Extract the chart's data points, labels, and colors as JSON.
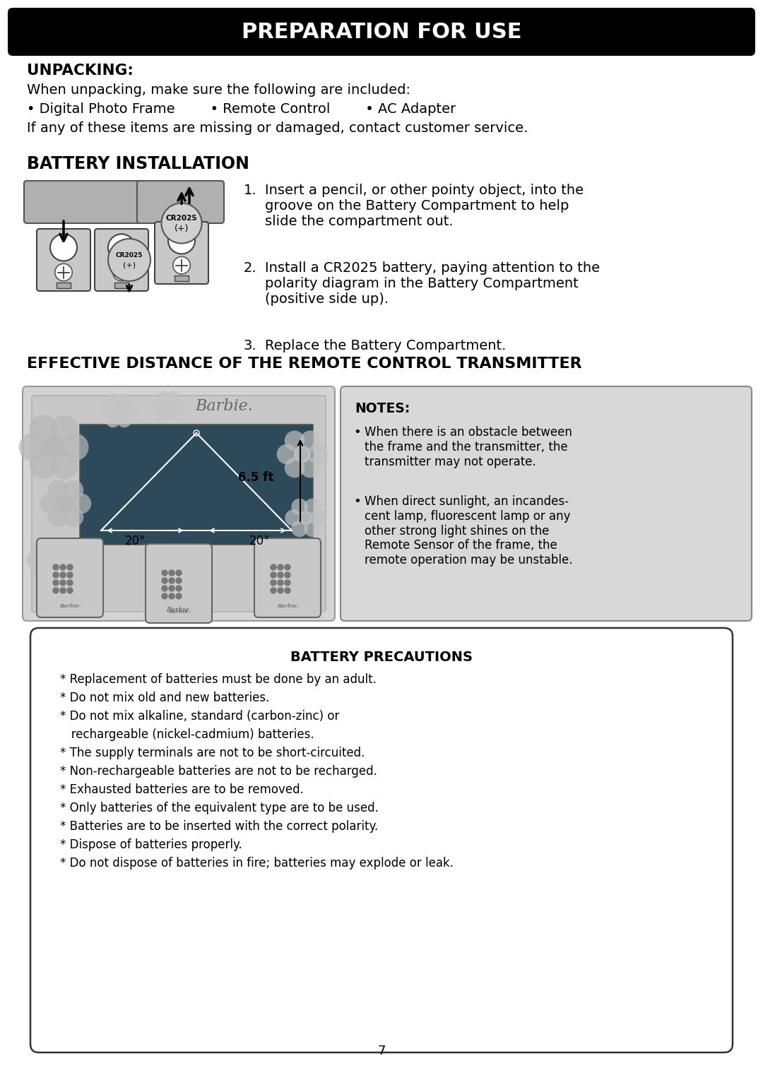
{
  "title": "PREPARATION FOR USE",
  "unpacking_heading": "UNPACKING:",
  "unpacking_line1": "When unpacking, make sure the following are included:",
  "unpacking_items": "• Digital Photo Frame        • Remote Control        • AC Adapter",
  "unpacking_line3": "If any of these items are missing or damaged, contact customer service.",
  "battery_heading": "BATTERY INSTALLATION",
  "step1_num": "1.",
  "step1_text": "Insert a pencil, or other pointy object, into the\ngroove on the Battery Compartment to help\nslide the compartment out.",
  "step2_num": "2.",
  "step2_text": "Install a CR2025 battery, paying attention to the\npolarity diagram in the Battery Compartment\n(positive side up).",
  "step3_num": "3.",
  "step3_text": "Replace the Battery Compartment.",
  "effective_heading": "EFFECTIVE DISTANCE OF THE REMOTE CONTROL TRANSMITTER",
  "notes_heading": "NOTES:",
  "note1": "When there is an obstacle between\nthe frame and the transmitter, the\ntransmitter may not operate.",
  "note2": "When direct sunlight, an incandes-\ncent lamp, fluorescent lamp or any\nother strong light shines on the\nRemote Sensor of the frame, the\nremote operation may be unstable.",
  "prec_heading": "BATTERY PRECAUTIONS",
  "prec_lines": [
    "* Replacement of batteries must be done by an adult.",
    "* Do not mix old and new batteries.",
    "* Do not mix alkaline, standard (carbon-zinc) or",
    "   rechargeable (nickel-cadmium) batteries.",
    "* The supply terminals are not to be short-circuited.",
    "* Non-rechargeable batteries are not to be recharged.",
    "* Exhausted batteries are to be removed.",
    "* Only batteries of the equivalent type are to be used.",
    "* Batteries are to be inserted with the correct polarity.",
    "* Dispose of batteries properly.",
    "* Do not dispose of batteries in fire; batteries may explode or leak."
  ],
  "page_number": "7"
}
